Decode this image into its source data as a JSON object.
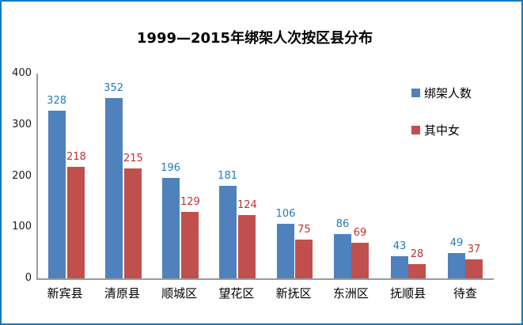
{
  "frame": {
    "border_color": "#1778be",
    "background": "#ffffff",
    "axis_color": "#9b9b9b"
  },
  "chart_data": {
    "type": "bar",
    "title": "1999—2015年绑架人次按区县分布",
    "categories": [
      "新宾县",
      "清原县",
      "顺城区",
      "望花区",
      "新抚区",
      "东洲区",
      "抚顺县",
      "待查"
    ],
    "series": [
      {
        "name": "绑架人数",
        "color": "#4F81BD",
        "label_color": "#1F7BC0",
        "values": [
          328,
          352,
          196,
          181,
          106,
          86,
          43,
          49
        ]
      },
      {
        "name": "其中女",
        "color": "#C0504D",
        "label_color": "#C0312E",
        "values": [
          218,
          215,
          129,
          124,
          75,
          69,
          28,
          37
        ]
      }
    ],
    "xlabel": "",
    "ylabel": "",
    "ylim": [
      0,
      400
    ],
    "yticks": [
      0,
      100,
      200,
      300,
      400
    ],
    "grid": false,
    "legend_position": "top-right",
    "data_labels": true
  }
}
